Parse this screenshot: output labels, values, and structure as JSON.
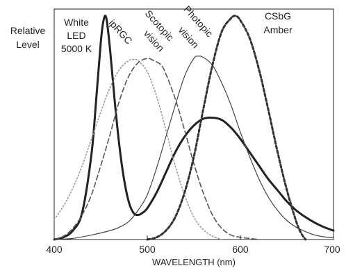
{
  "chart_data": {
    "type": "line",
    "title": "",
    "xlabel": "WAVELENGTH (nm)",
    "ylabel": [
      "Relative",
      "Level"
    ],
    "xlim": [
      400,
      700
    ],
    "ylim": [
      0,
      1
    ],
    "xticks": [
      "400",
      "500",
      "600",
      "700"
    ],
    "grid": false,
    "series": [
      {
        "name": [
          "White",
          "LED",
          "5000 K"
        ],
        "style": "solid-thick",
        "color": "#222222",
        "x": [
          400,
          410,
          420,
          430,
          440,
          445,
          450,
          453,
          456,
          460,
          465,
          470,
          475,
          480,
          485,
          490,
          495,
          500,
          510,
          520,
          530,
          540,
          550,
          560,
          570,
          580,
          590,
          600,
          610,
          620,
          630,
          640,
          650,
          660,
          670,
          680,
          690,
          700
        ],
        "y": [
          0.0,
          0.01,
          0.04,
          0.12,
          0.38,
          0.62,
          0.88,
          0.98,
          0.99,
          0.85,
          0.62,
          0.42,
          0.27,
          0.17,
          0.12,
          0.11,
          0.12,
          0.14,
          0.21,
          0.3,
          0.39,
          0.46,
          0.51,
          0.54,
          0.545,
          0.535,
          0.5,
          0.45,
          0.39,
          0.33,
          0.27,
          0.22,
          0.17,
          0.13,
          0.1,
          0.075,
          0.055,
          0.04
        ]
      },
      {
        "name": "ipRGC",
        "style": "dotted",
        "color": "#999999",
        "x": [
          400,
          410,
          420,
          430,
          440,
          450,
          460,
          470,
          480,
          485,
          490,
          500,
          510,
          520,
          530,
          540,
          550,
          560,
          570,
          580
        ],
        "y": [
          0.09,
          0.15,
          0.23,
          0.33,
          0.45,
          0.57,
          0.68,
          0.76,
          0.8,
          0.805,
          0.8,
          0.75,
          0.64,
          0.49,
          0.33,
          0.2,
          0.1,
          0.045,
          0.015,
          0.0
        ]
      },
      {
        "name": [
          "Scotopic",
          "vision"
        ],
        "style": "dashed",
        "color": "#555555",
        "x": [
          400,
          410,
          420,
          430,
          440,
          450,
          460,
          470,
          480,
          490,
          500,
          507,
          515,
          520,
          530,
          540,
          550,
          560,
          570,
          580,
          590,
          600,
          610,
          620
        ],
        "y": [
          0.0,
          0.015,
          0.05,
          0.11,
          0.2,
          0.33,
          0.47,
          0.62,
          0.73,
          0.79,
          0.81,
          0.8,
          0.78,
          0.74,
          0.63,
          0.49,
          0.34,
          0.21,
          0.11,
          0.05,
          0.02,
          0.01,
          0.005,
          0.0
        ]
      },
      {
        "name": [
          "Photopic",
          "vision"
        ],
        "style": "solid-thin",
        "color": "#444444",
        "x": [
          400,
          420,
          440,
          460,
          470,
          480,
          490,
          500,
          510,
          520,
          530,
          540,
          550,
          555,
          560,
          570,
          580,
          590,
          600,
          610,
          620,
          630,
          640,
          650,
          660,
          670,
          680,
          690,
          700
        ],
        "y": [
          0.0,
          0.005,
          0.02,
          0.04,
          0.055,
          0.08,
          0.13,
          0.2,
          0.32,
          0.46,
          0.6,
          0.73,
          0.81,
          0.82,
          0.815,
          0.78,
          0.7,
          0.6,
          0.48,
          0.37,
          0.27,
          0.19,
          0.13,
          0.085,
          0.055,
          0.035,
          0.02,
          0.012,
          0.008
        ]
      },
      {
        "name": [
          "CSbG",
          "Amber"
        ],
        "style": "dashed-thick",
        "color": "#333333",
        "x": [
          500,
          510,
          520,
          530,
          540,
          550,
          560,
          570,
          580,
          590,
          595,
          600,
          610,
          620,
          630,
          640,
          650,
          660,
          665,
          670
        ],
        "y": [
          0.0,
          0.01,
          0.04,
          0.1,
          0.21,
          0.37,
          0.58,
          0.78,
          0.93,
          0.99,
          1.0,
          0.98,
          0.9,
          0.76,
          0.58,
          0.39,
          0.22,
          0.08,
          0.03,
          0.0
        ]
      }
    ]
  }
}
